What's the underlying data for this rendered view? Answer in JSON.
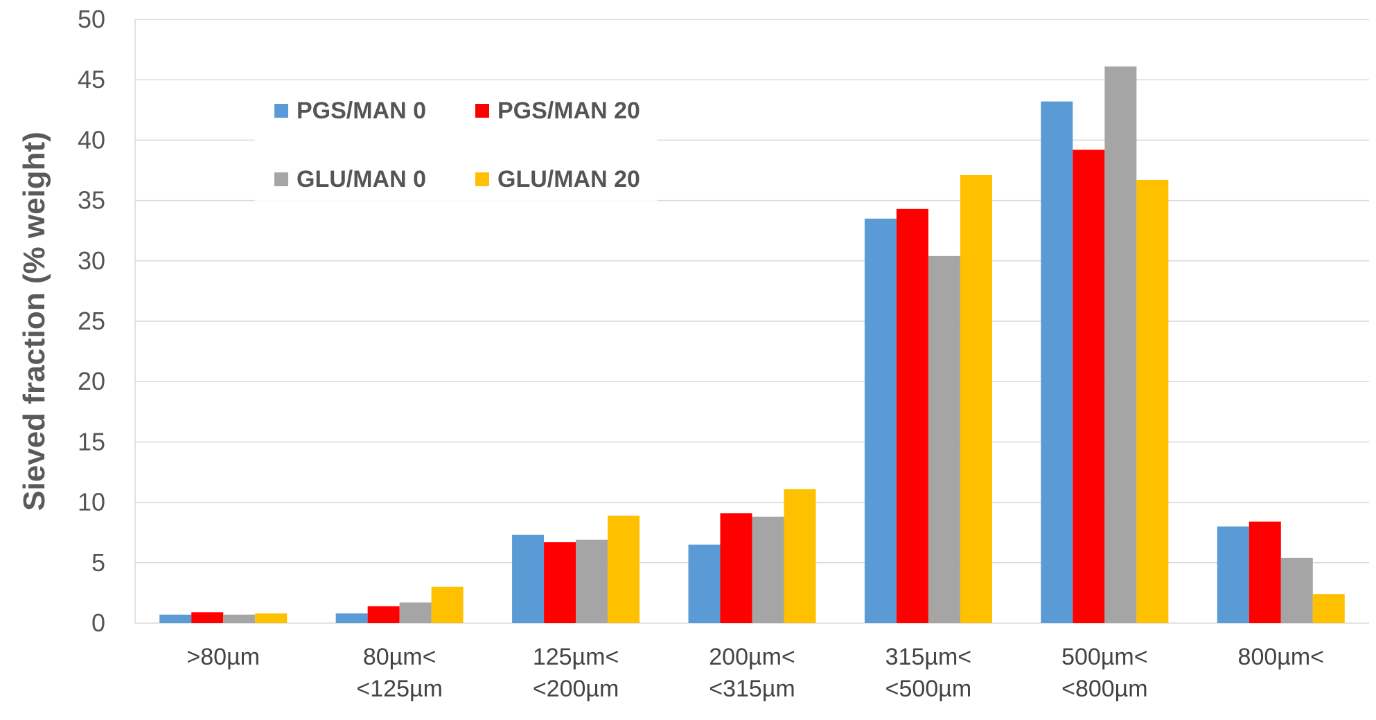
{
  "chart_data": {
    "type": "bar",
    "categories": [
      [
        ">80µm"
      ],
      [
        "80µm<",
        "<125µm"
      ],
      [
        "125µm<",
        "<200µm"
      ],
      [
        "200µm<",
        "<315µm"
      ],
      [
        "315µm<",
        "<500µm"
      ],
      [
        "500µm<",
        "<800µm"
      ],
      [
        "800µm<"
      ]
    ],
    "series": [
      {
        "name": "PGS/MAN 0",
        "color": "#5B9BD5",
        "values": [
          0.7,
          0.8,
          7.3,
          6.5,
          33.5,
          43.2,
          8.0
        ]
      },
      {
        "name": "PGS/MAN 20",
        "color": "#FF0000",
        "values": [
          0.9,
          1.4,
          6.7,
          9.1,
          34.3,
          39.2,
          8.4
        ]
      },
      {
        "name": "GLU/MAN 0",
        "color": "#A5A5A5",
        "values": [
          0.7,
          1.7,
          6.9,
          8.8,
          30.4,
          46.1,
          5.4
        ]
      },
      {
        "name": "GLU/MAN 20",
        "color": "#FFC000",
        "values": [
          0.8,
          3.0,
          8.9,
          11.1,
          37.1,
          36.7,
          2.4
        ]
      }
    ],
    "ylabel": "Sieved fraction (% weight)",
    "xlabel": "",
    "ylim": [
      0,
      50
    ],
    "yticks": [
      0,
      5,
      10,
      15,
      20,
      25,
      30,
      35,
      40,
      45,
      50
    ],
    "grid": true,
    "legend_position": "top-left"
  }
}
